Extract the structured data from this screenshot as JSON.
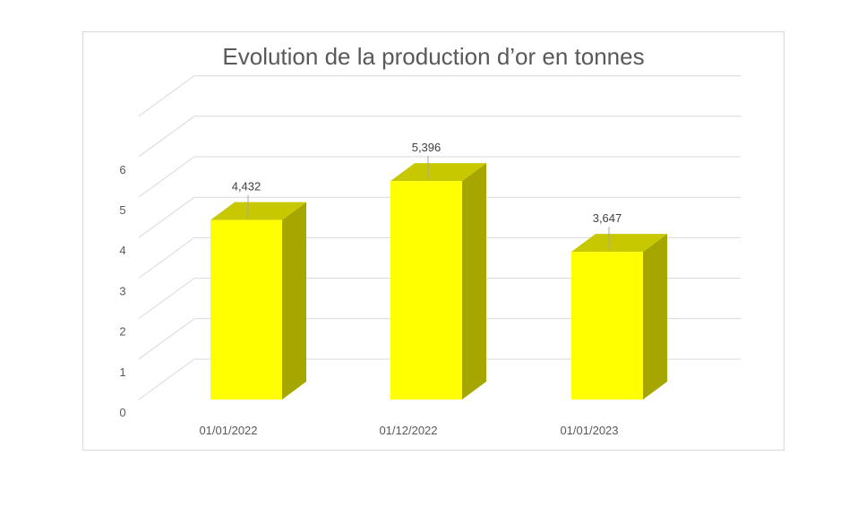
{
  "chart_data": {
    "type": "bar",
    "title": "Evolution de la production d’or en tonnes",
    "categories": [
      "01/01/2022",
      "01/12/2022",
      "01/01/2023"
    ],
    "values": [
      4.432,
      5.396,
      3.647
    ],
    "value_labels": [
      "4,432",
      "5,396",
      "3,647"
    ],
    "y_ticks": [
      "0",
      "1",
      "2",
      "3",
      "4",
      "5",
      "6"
    ],
    "ylim": [
      0,
      7
    ],
    "grid": true,
    "style": "3d-column",
    "colors": {
      "front": "#ffff00",
      "top": "#c8c800",
      "side": "#a6a600"
    }
  }
}
